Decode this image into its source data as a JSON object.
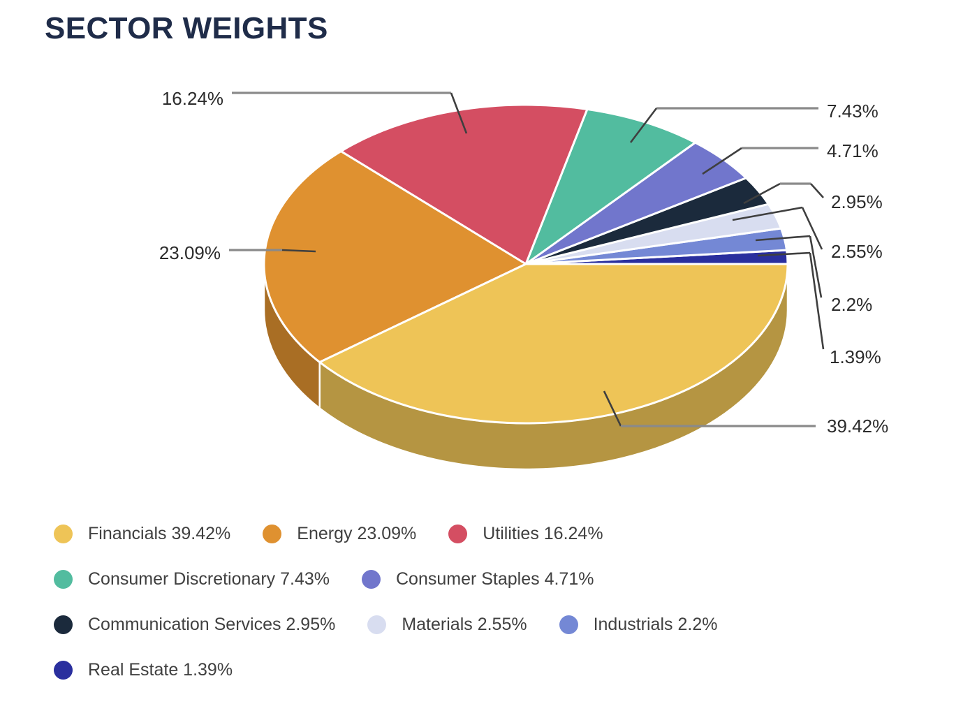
{
  "page": {
    "title": "SECTOR WEIGHTS"
  },
  "chart_data": {
    "type": "pie",
    "title": "SECTOR WEIGHTS",
    "style": "3d",
    "legend_position": "bottom",
    "value_unit": "%",
    "sectors": [
      {
        "label": "Financials",
        "value": 39.42,
        "color": "#EEC457"
      },
      {
        "label": "Energy",
        "value": 23.09,
        "color": "#DF9130"
      },
      {
        "label": "Utilities",
        "value": 16.24,
        "color": "#D44E62"
      },
      {
        "label": "Consumer Discretionary",
        "value": 7.43,
        "color": "#52BC9F"
      },
      {
        "label": "Consumer Staples",
        "value": 4.71,
        "color": "#7176CC"
      },
      {
        "label": "Communication Services",
        "value": 2.95,
        "color": "#1B2A3C"
      },
      {
        "label": "Materials",
        "value": 2.55,
        "color": "#D8DDF0"
      },
      {
        "label": "Industrials",
        "value": 2.2,
        "color": "#7488D5"
      },
      {
        "label": "Real Estate",
        "value": 1.39,
        "color": "#2A2F9E"
      }
    ]
  },
  "colors": {
    "title_text": "#1f2c49",
    "legend_text": "#404040",
    "callout_text": "#2b2b2b",
    "leader_gray": "#8a8a8a",
    "leader_dark": "#3f3f3f",
    "slice_gap": "#ffffff"
  }
}
